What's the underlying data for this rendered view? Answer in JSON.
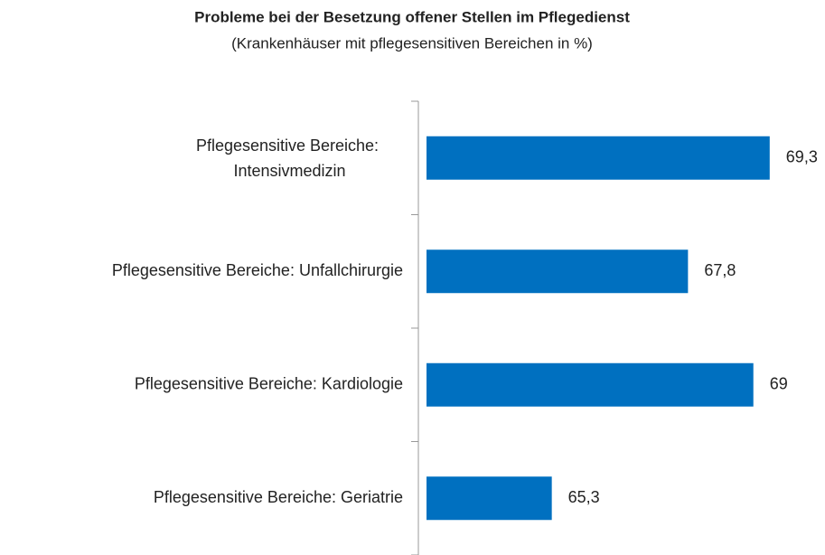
{
  "chart_data": {
    "type": "barh",
    "title": "Probleme bei der Besetzung offener Stellen im Pflegedienst",
    "subtitle": "(Krankenhäuser mit pflegesensitiven Bereichen in %)",
    "categories": [
      "Pflegesensitive Bereiche: Intensivmedizin",
      "Pflegesensitive Bereiche: Unfallchirurgie",
      "Pflegesensitive Bereiche: Kardiologie",
      "Pflegesensitive Bereiche: Geriatrie"
    ],
    "values": [
      69.3,
      67.8,
      69,
      65.3
    ],
    "value_labels": [
      "69,3",
      "67,8",
      "69",
      "65,3"
    ],
    "color": "#0070c0",
    "xlim": [
      63,
      70
    ]
  }
}
